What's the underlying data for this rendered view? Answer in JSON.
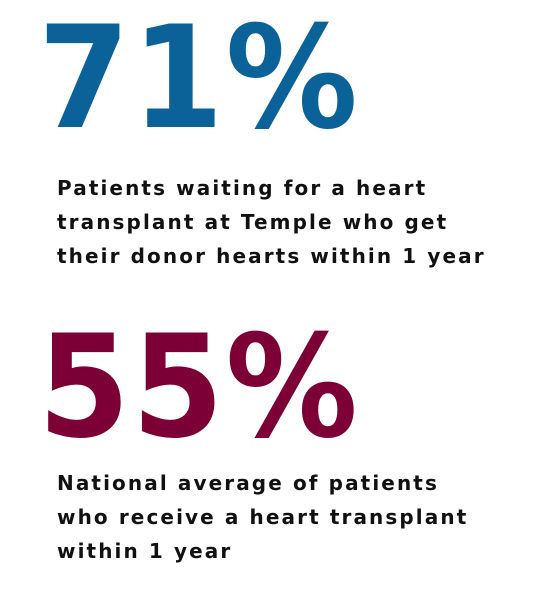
{
  "stats": [
    {
      "value": "71%",
      "color": "#0b6298",
      "caption_lines": [
        "Patients waiting for a heart",
        "transplant at Temple who get",
        "their donor hearts within 1 year"
      ]
    },
    {
      "value": "55%",
      "color": "#7c0036",
      "caption_lines": [
        "National average of patients",
        "who receive a heart transplant",
        "within 1 year"
      ]
    }
  ]
}
